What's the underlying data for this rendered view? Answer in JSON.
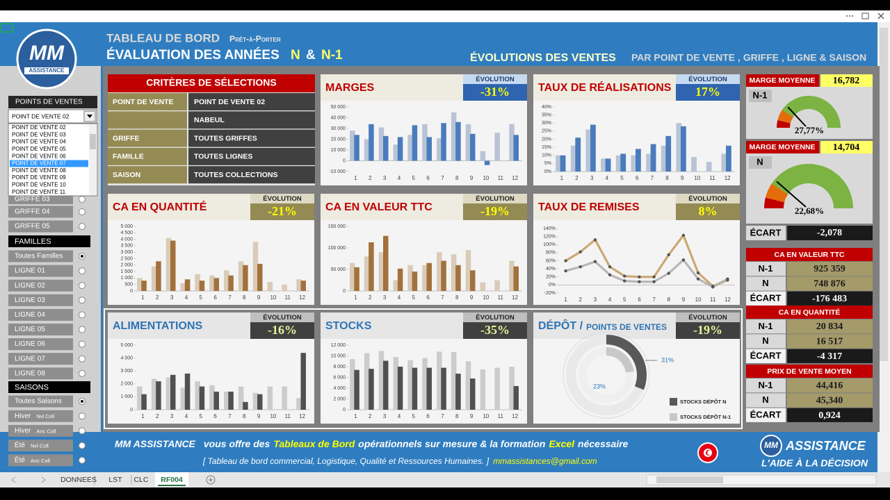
{
  "window": {
    "tabs": [
      {
        "label": "DONNEES"
      },
      {
        "label": "LST"
      },
      {
        "label": "CLC"
      },
      {
        "label": "RF004",
        "active": true
      }
    ]
  },
  "logo": {
    "mark": "MM",
    "name": "ASSISTANCE"
  },
  "header": {
    "title": "TABLEAU DE BORD",
    "subtitle": "Prêt-à-Porter",
    "heading": "ÉVALUATION DES ANNÉES",
    "year_n": "N",
    "and": "&",
    "year_n1": "N-1",
    "right_title": "ÉVOLUTIONS DES VENTES",
    "right_subtitle": "PAR POINT DE VENTE , GRIFFE , LIGNE & SAISON"
  },
  "sidebar": {
    "points_header": "POINTS DE VENTES",
    "dropdown": "POINT DE VENTE 02",
    "list": [
      {
        "label": "POINT DE VENTE 02"
      },
      {
        "label": "POINT DE VENTE 03"
      },
      {
        "label": "POINT DE VENTE 04"
      },
      {
        "label": "POINT DE VENTE 05"
      },
      {
        "label": "POINT DE VENTE 06"
      },
      {
        "label": "POINT DE VENTE 07",
        "selected": true
      },
      {
        "label": "POINT DE VENTE 08"
      },
      {
        "label": "POINT DE VENTE 09"
      },
      {
        "label": "POINT DE VENTE 10"
      },
      {
        "label": "POINT DE VENTE 11"
      }
    ],
    "griffes": [
      {
        "label": "GRIFFE 03"
      },
      {
        "label": "GRIFFE 04"
      },
      {
        "label": "GRIFFE 05"
      }
    ],
    "familles_header": "FAMILLES",
    "familles": [
      {
        "label": "Toutes Familles",
        "selected": true
      },
      {
        "label": "LIGNE 01"
      },
      {
        "label": "LIGNE 02"
      },
      {
        "label": "LIGNE 03"
      },
      {
        "label": "LIGNE 04"
      },
      {
        "label": "LIGNE 05"
      },
      {
        "label": "LIGNE 06"
      },
      {
        "label": "LIGNE 07"
      },
      {
        "label": "LIGNE 08"
      }
    ],
    "saisons_header": "SAISONS",
    "saisons": [
      {
        "label": "Toutes Saisons",
        "selected": true
      },
      {
        "label": "Hiver",
        "sub": "Nvl Coll"
      },
      {
        "label": "Hiver",
        "sub": "Anc Coll"
      },
      {
        "label": "Été",
        "sub": "Nvl Coll"
      },
      {
        "label": "Été",
        "sub": "Anc Coll"
      }
    ]
  },
  "criteria": {
    "title": "CRITÈRES DE SÉLECTIONS",
    "rows": [
      {
        "label": "POINT DE VENTE",
        "value": "POINT DE VENTE 02"
      },
      {
        "value": "NABEUL"
      },
      {
        "label": "GRIFFE",
        "value": "TOUTES GRIFFES"
      },
      {
        "label": "FAMILLE",
        "value": "TOUTES LIGNES"
      },
      {
        "label": "SAISON",
        "value": "TOUTES COLLECTIONS"
      }
    ]
  },
  "chart_data": [
    {
      "type": "bar",
      "title": "MARGES",
      "evolution_label": "ÉVOLUTION",
      "evolution": "-31%",
      "categories": [
        1,
        2,
        3,
        4,
        5,
        6,
        7,
        8,
        9,
        10,
        11,
        12
      ],
      "series": [
        {
          "color": "#b8c4d6",
          "values": [
            28000,
            20000,
            31000,
            15000,
            24000,
            34000,
            21000,
            45000,
            34000,
            9000,
            26000,
            34000
          ]
        },
        {
          "color": "#4a7bbd",
          "values": [
            24000,
            34000,
            23000,
            22000,
            33000,
            22000,
            35000,
            36000,
            25000,
            -4000,
            null,
            24000
          ]
        }
      ],
      "ylim": [
        -10000,
        50000
      ],
      "yticks": [
        {
          "value": -10000,
          "label": "-10 000"
        },
        0,
        {
          "value": 10000,
          "label": "10 000"
        },
        {
          "value": 20000,
          "label": "20 000"
        },
        {
          "value": 30000,
          "label": "30 000"
        },
        {
          "value": 40000,
          "label": "40 000"
        },
        {
          "value": 50000,
          "label": "50 000"
        }
      ]
    },
    {
      "type": "bar",
      "title": "TAUX DE RÉALISATIONS",
      "evolution_label": "ÉVOLUTION",
      "evolution": "17%",
      "categories": [
        1,
        2,
        3,
        4,
        5,
        6,
        7,
        8,
        9,
        10,
        11,
        12
      ],
      "series": [
        {
          "color": "#b8c4d6",
          "values": [
            10,
            16,
            26,
            8,
            10,
            10,
            11,
            16,
            30,
            9,
            6,
            11
          ]
        },
        {
          "color": "#4a7bbd",
          "values": [
            10,
            21,
            29,
            8,
            11,
            14,
            17,
            22,
            28,
            null,
            null,
            16
          ]
        }
      ],
      "ylim": [
        0,
        40
      ],
      "yticks": [
        {
          "value": 0,
          "label": "0%"
        },
        {
          "value": 5,
          "label": "5%"
        },
        {
          "value": 10,
          "label": "10%"
        },
        {
          "value": 15,
          "label": "15%"
        },
        {
          "value": 20,
          "label": "20%"
        },
        {
          "value": 25,
          "label": "25%"
        },
        {
          "value": 30,
          "label": "30%"
        },
        {
          "value": 35,
          "label": "35%"
        },
        {
          "value": 40,
          "label": "40%"
        }
      ]
    },
    {
      "type": "bar",
      "title": "CA EN QUANTITÉ",
      "evolution_label": "ÉVOLUTION",
      "evolution": "-21%",
      "categories": [
        1,
        2,
        3,
        4,
        5,
        6,
        7,
        8,
        9,
        10,
        11,
        12
      ],
      "series": [
        {
          "color": "#d9cbb8",
          "values": [
            1000,
            1900,
            4100,
            600,
            1300,
            1200,
            1600,
            2300,
            3800,
            700,
            500,
            900
          ]
        },
        {
          "color": "#a2713c",
          "values": [
            800,
            2300,
            3900,
            900,
            800,
            1000,
            1200,
            2000,
            2100,
            null,
            null,
            800
          ]
        }
      ],
      "ylim": [
        0,
        5000
      ],
      "yticks": [
        0,
        500,
        {
          "value": 1000,
          "label": "1 000"
        },
        {
          "value": 1500,
          "label": "1 500"
        },
        {
          "value": 2000,
          "label": "2 000"
        },
        {
          "value": 2500,
          "label": "2 500"
        },
        {
          "value": 3000,
          "label": "3 000"
        },
        {
          "value": 3500,
          "label": "3 500"
        },
        {
          "value": 4000,
          "label": "4 000"
        },
        {
          "value": 4500,
          "label": "4 500"
        },
        {
          "value": 5000,
          "label": "5 000"
        }
      ]
    },
    {
      "type": "bar",
      "title": "CA EN VALEUR TTC",
      "evolution_label": "ÉVOLUTION",
      "evolution": "-19%",
      "categories": [
        1,
        2,
        3,
        4,
        5,
        6,
        7,
        8,
        9,
        10,
        11,
        12
      ],
      "series": [
        {
          "color": "#d9cbb8",
          "values": [
            65000,
            80000,
            90000,
            25000,
            60000,
            60000,
            90000,
            85000,
            95000,
            20000,
            25000,
            70000
          ]
        },
        {
          "color": "#a2713c",
          "values": [
            55000,
            113000,
            128000,
            52000,
            45000,
            65000,
            70000,
            60000,
            48000,
            null,
            null,
            57000
          ]
        }
      ],
      "ylim": [
        0,
        150000
      ],
      "yticks": [
        0,
        {
          "value": 50000,
          "label": "50 000"
        },
        {
          "value": 100000,
          "label": "100 000"
        },
        {
          "value": 150000,
          "label": "150 000"
        }
      ]
    },
    {
      "type": "line",
      "title": "TAUX DE REMISES",
      "evolution_label": "ÉVOLUTION",
      "evolution": "8%",
      "categories": [
        1,
        2,
        3,
        4,
        5,
        6,
        7,
        8,
        9,
        10,
        11,
        12
      ],
      "series": [
        {
          "color": "#c8a064",
          "values": [
            60,
            82,
            112,
            45,
            22,
            20,
            20,
            75,
            123,
            30,
            -3,
            12
          ]
        },
        {
          "color": "#b0b0b0",
          "values": [
            35,
            45,
            58,
            25,
            10,
            8,
            8,
            29,
            62,
            15,
            -5,
            15
          ]
        }
      ],
      "ylim": [
        -20,
        140
      ],
      "yticks": [
        {
          "value": -20,
          "label": "-20%"
        },
        {
          "value": 0,
          "label": "0%"
        },
        {
          "value": 20,
          "label": "20%"
        },
        {
          "value": 40,
          "label": "40%"
        },
        {
          "value": 60,
          "label": "60%"
        },
        {
          "value": 80,
          "label": "80%"
        },
        {
          "value": 100,
          "label": "100%"
        },
        {
          "value": 120,
          "label": "120%"
        },
        {
          "value": 140,
          "label": "140%"
        }
      ]
    },
    {
      "type": "bar",
      "title": "ALIMENTATIONS",
      "evolution_label": "ÉVOLUTION",
      "evolution": "-16%",
      "categories": [
        1,
        2,
        3,
        4,
        5,
        6,
        7,
        8,
        9,
        10,
        11,
        12
      ],
      "series": [
        {
          "color": "#cccccc",
          "values": [
            1800,
            2400,
            2500,
            1700,
            2200,
            1900,
            1400,
            1800,
            1300,
            1800,
            1800,
            900
          ]
        },
        {
          "color": "#505050",
          "values": [
            1200,
            2200,
            2700,
            2800,
            1800,
            1400,
            1400,
            600,
            1200,
            null,
            null,
            4400
          ]
        }
      ],
      "ylim": [
        0,
        5000
      ],
      "yticks": [
        0,
        {
          "value": 1000,
          "label": "1 000"
        },
        {
          "value": 2000,
          "label": "2 000"
        },
        {
          "value": 3000,
          "label": "3 000"
        },
        {
          "value": 4000,
          "label": "4 000"
        },
        {
          "value": 5000,
          "label": "5 000"
        }
      ]
    },
    {
      "type": "bar",
      "title": "STOCKS",
      "evolution_label": "ÉVOLUTION",
      "evolution": "-35%",
      "categories": [
        1,
        2,
        3,
        4,
        5,
        6,
        7,
        8,
        9,
        10,
        11,
        12
      ],
      "series": [
        {
          "color": "#cccccc",
          "values": [
            9400,
            10500,
            10900,
            9800,
            9200,
            9600,
            10800,
            10700,
            9000,
            7500,
            7800,
            8000
          ]
        },
        {
          "color": "#505050",
          "values": [
            7400,
            7600,
            9100,
            8000,
            7800,
            7800,
            7800,
            6700,
            5800,
            null,
            null,
            4400
          ]
        }
      ],
      "ylim": [
        0,
        12000
      ],
      "yticks": [
        0,
        {
          "value": 2000,
          "label": "2 000"
        },
        {
          "value": 4000,
          "label": "4 000"
        },
        {
          "value": 6000,
          "label": "6 000"
        },
        {
          "value": 8000,
          "label": "8 000"
        },
        {
          "value": 10000,
          "label": "10 000"
        },
        {
          "value": 12000,
          "label": "12 000"
        }
      ]
    },
    {
      "type": "donut",
      "title": "DÉPÔT /",
      "title_sub": "POINTS DE VENTES",
      "evolution_label": "ÉVOLUTION",
      "evolution": "-19%",
      "series": [
        {
          "name": "STOCKS DÉPÔT N",
          "color": "#595959",
          "values": [
            31
          ],
          "value_labels": [
            "31%"
          ]
        },
        {
          "name": "STOCKS DÉPÔT N-1",
          "color": "#c8c8c8",
          "values": [
            23
          ],
          "value_labels": [
            "23%"
          ]
        }
      ]
    }
  ],
  "kpi": {
    "marge_n1": {
      "label": "MARGE MOYENNE",
      "value": "16,782",
      "year": "N-1",
      "rate": "27,77%"
    },
    "marge_n": {
      "label": "MARGE MOYENNE",
      "value": "14,704",
      "year": "N",
      "rate": "22,68%"
    },
    "ecart": {
      "label": "ÉCART",
      "value": "-2,078"
    },
    "tables": [
      {
        "title": "CA EN VALEUR TTC",
        "rows": [
          {
            "label": "N-1",
            "value": "925 359"
          },
          {
            "label": "N",
            "value": "748 876"
          },
          {
            "label": "ÉCART",
            "value": "-176 483"
          }
        ]
      },
      {
        "title": "CA EN QUANTITÉ",
        "rows": [
          {
            "label": "N-1",
            "value": "20 834"
          },
          {
            "label": "N",
            "value": "16 517"
          },
          {
            "label": "ÉCART",
            "value": "-4 317"
          }
        ]
      },
      {
        "title": "PRIX DE VENTE MOYEN",
        "rows": [
          {
            "label": "N-1",
            "value": "44,416"
          },
          {
            "label": "N",
            "value": "45,340"
          },
          {
            "label": "ÉCART",
            "value": "0,924"
          }
        ]
      }
    ]
  },
  "footer": {
    "brand": "MM ASSISTANCE",
    "t1": "vous offre des",
    "t2": "Tableaux de Bord",
    "t3": "opérationnels sur mesure & la formation",
    "t4": "Excel",
    "t5": "nécessaire",
    "line2": "[ Tableau de bord commercial, Logistique, Qualité et  Ressources Humaines. ]",
    "email": "mmassistances@gmail.com",
    "logo_name": "ASSISTANCE",
    "slogan": "L'AIDE À LA DÉCISION"
  }
}
